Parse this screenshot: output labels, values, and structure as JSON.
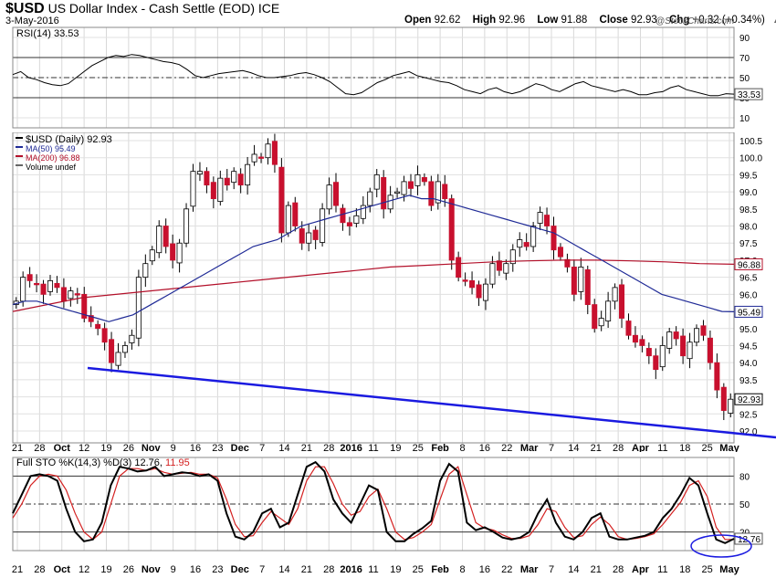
{
  "header": {
    "symbol": "$USD",
    "name": "US Dollar Index - Cash Settle (EOD)",
    "exchange": "ICE",
    "date": "3-May-2016",
    "open_label": "Open",
    "open": "92.62",
    "high_label": "High",
    "high": "92.96",
    "low_label": "Low",
    "low": "91.88",
    "close_label": "Close",
    "close": "92.93",
    "chg_label": "Chg",
    "chg": "+0.32 (+0.34%)",
    "chg_arrow": "▲",
    "credit": "@StockCharts.com"
  },
  "chart_data": [
    {
      "type": "line",
      "title": "RSI(14) 33.53",
      "indicator": "RSI(14)",
      "current_value_label": "33.53",
      "ylim": [
        0,
        100
      ],
      "y_ticks": [
        "90",
        "70",
        "50",
        "30",
        "10"
      ],
      "reference_lines": [
        70,
        50,
        30
      ],
      "series": [
        {
          "values": [
            53,
            56,
            50,
            48,
            45,
            43,
            42,
            44,
            50,
            56,
            62,
            66,
            70,
            72,
            71,
            73,
            72,
            70,
            68,
            66,
            65,
            63,
            58,
            52,
            50,
            52,
            54,
            55,
            56,
            57,
            55,
            52,
            50,
            50,
            51,
            52,
            54,
            55,
            53,
            50,
            46,
            40,
            34,
            33,
            35,
            40,
            45,
            48,
            52,
            54,
            56,
            52,
            50,
            48,
            46,
            45,
            42,
            38,
            36,
            34,
            38,
            40,
            36,
            34,
            36,
            40,
            44,
            42,
            38,
            36,
            40,
            44,
            46,
            42,
            40,
            38,
            36,
            38,
            36,
            33,
            33,
            35,
            36,
            40,
            42,
            38,
            36,
            34,
            32,
            32,
            34,
            33.53
          ]
        }
      ]
    },
    {
      "type": "candlestick",
      "title": "$USD (Daily) 92.93",
      "legend": [
        {
          "name": "$USD (Daily) 92.93",
          "color": "#000000"
        },
        {
          "name": "MA(50) 95.49",
          "color": "#1f2a96"
        },
        {
          "name": "MA(200) 96.88",
          "color": "#b3102a"
        },
        {
          "name": "Volume undef",
          "color": "#666666"
        }
      ],
      "ylim": [
        92.0,
        100.5
      ],
      "y_ticks": [
        "100.5",
        "100.0",
        "99.5",
        "99.0",
        "98.5",
        "98.0",
        "97.5",
        "97.0",
        "96.5",
        "96.0",
        "95.5",
        "95.0",
        "94.5",
        "94.0",
        "93.5",
        "93.0",
        "92.5",
        "92.0"
      ],
      "x_ticks": [
        "21",
        "28",
        "Oct",
        "12",
        "19",
        "26",
        "Nov",
        "9",
        "16",
        "23",
        "Dec",
        "7",
        "14",
        "21",
        "28",
        "2016",
        "11",
        "19",
        "25",
        "Feb",
        "8",
        "16",
        "22",
        "Mar",
        "7",
        "14",
        "21",
        "28",
        "Apr",
        "11",
        "18",
        "25",
        "May"
      ],
      "price_labels": {
        "ma200": "96.88",
        "ma50": "95.49",
        "close": "92.93"
      },
      "closes": [
        95.8,
        96.5,
        96.4,
        96.3,
        96.0,
        96.4,
        96.2,
        95.8,
        96.1,
        96.0,
        95.3,
        95.2,
        95.0,
        94.6,
        94.0,
        94.3,
        94.5,
        94.8,
        96.5,
        96.9,
        97.3,
        98.0,
        97.4,
        97.0,
        97.5,
        98.5,
        99.6,
        99.6,
        99.2,
        98.8,
        99.4,
        99.2,
        99.6,
        99.2,
        99.8,
        100.1,
        100.0,
        100.4,
        99.8,
        97.8,
        98.6,
        98.0,
        97.5,
        97.8,
        97.6,
        98.5,
        99.2,
        98.6,
        98.1,
        98.0,
        98.3,
        98.6,
        99.0,
        99.5,
        98.5,
        98.9,
        99.0,
        99.3,
        99.1,
        99.5,
        99.3,
        98.6,
        99.3,
        98.8,
        97.0,
        96.5,
        96.4,
        96.2,
        95.9,
        96.3,
        96.9,
        96.7,
        96.9,
        97.3,
        97.6,
        97.4,
        98.0,
        98.4,
        98.0,
        97.3,
        97.1,
        96.8,
        96.0,
        96.8,
        95.7,
        95.0,
        95.3,
        95.8,
        96.2,
        95.3,
        94.8,
        94.6,
        94.5,
        94.2,
        93.8,
        94.5,
        94.9,
        94.7,
        94.2,
        94.6,
        95.0,
        94.8,
        94.0,
        93.2,
        92.6,
        92.93
      ],
      "ma50": [
        95.7,
        95.8,
        95.8,
        95.7,
        95.6,
        95.5,
        95.4,
        95.3,
        95.2,
        95.3,
        95.4,
        95.6,
        95.8,
        96.0,
        96.2,
        96.4,
        96.6,
        96.8,
        97.0,
        97.2,
        97.4,
        97.5,
        97.6,
        97.8,
        98.0,
        98.1,
        98.2,
        98.3,
        98.4,
        98.5,
        98.6,
        98.7,
        98.8,
        98.9,
        98.8,
        98.8,
        98.7,
        98.6,
        98.5,
        98.4,
        98.3,
        98.2,
        98.1,
        98.0,
        97.9,
        97.8,
        97.6,
        97.4,
        97.2,
        97.0,
        96.8,
        96.6,
        96.4,
        96.2,
        96.0,
        95.9,
        95.8,
        95.7,
        95.6,
        95.5,
        95.49
      ],
      "ma200": [
        95.5,
        95.7,
        95.9,
        96.0,
        96.1,
        96.2,
        96.3,
        96.4,
        96.5,
        96.6,
        96.7,
        96.8,
        96.85,
        96.9,
        96.95,
        96.98,
        97.0,
        97.0,
        96.98,
        96.95,
        96.9,
        96.88
      ]
    },
    {
      "type": "line",
      "title": "Full STO %K(14,3) %D(3) 12.76, 11.95",
      "indicator": "Full STO %K(14,3) %D(3)",
      "k_label": "12.76",
      "d_label": "11.95",
      "current_value_label": "12.76",
      "ylim": [
        0,
        100
      ],
      "y_ticks": [
        "80",
        "50",
        "20"
      ],
      "reference_lines": [
        80,
        50,
        20
      ],
      "series": [
        {
          "values": [
            40,
            60,
            80,
            82,
            80,
            75,
            45,
            20,
            10,
            12,
            30,
            70,
            90,
            88,
            85,
            86,
            90,
            80,
            82,
            84,
            83,
            80,
            82,
            75,
            40,
            15,
            12,
            20,
            40,
            45,
            25,
            30,
            60,
            90,
            95,
            85,
            55,
            40,
            30,
            50,
            70,
            65,
            20,
            10,
            10,
            18,
            24,
            32,
            75,
            93,
            85,
            30,
            22,
            25,
            20,
            14,
            12,
            14,
            20,
            40,
            55,
            30,
            15,
            12,
            20,
            35,
            40,
            15,
            12,
            12,
            14,
            16,
            20,
            35,
            45,
            60,
            78,
            70,
            40,
            12,
            8,
            12.76
          ]
        },
        {
          "values": [
            35,
            50,
            70,
            80,
            82,
            80,
            65,
            40,
            20,
            12,
            20,
            50,
            80,
            88,
            88,
            86,
            88,
            84,
            82,
            83,
            84,
            82,
            82,
            78,
            55,
            28,
            15,
            16,
            30,
            42,
            35,
            28,
            45,
            75,
            90,
            90,
            72,
            50,
            38,
            42,
            58,
            66,
            45,
            20,
            12,
            14,
            20,
            28,
            55,
            82,
            90,
            60,
            30,
            24,
            22,
            17,
            13,
            13,
            16,
            28,
            45,
            42,
            25,
            14,
            16,
            28,
            36,
            28,
            15,
            12,
            13,
            15,
            18,
            28,
            40,
            52,
            70,
            75,
            58,
            25,
            12,
            11.95
          ]
        }
      ]
    }
  ]
}
